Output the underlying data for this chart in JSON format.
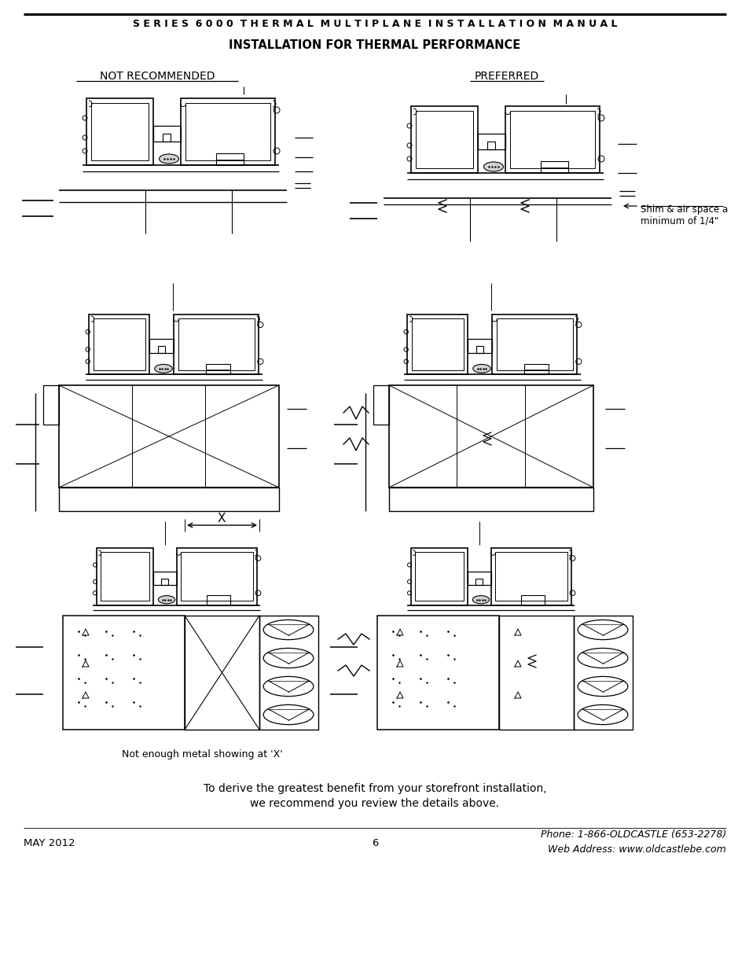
{
  "title_main": "S E R I E S  6 0 0 0  T H E R M A L  M U L T I P L A N E  I N S T A L L A T I O N  M A N U A L",
  "title_sub": "INSTALLATION FOR THERMAL PERFORMANCE",
  "label_left": "NOT RECOMMENDED",
  "label_right": "PREFERRED",
  "shim_label": "Shim & air space a\nminimum of 1/4\"",
  "note_bottom": "Not enough metal showing at 'X'",
  "footer_left": "MAY 2012",
  "footer_center": "6",
  "footer_right_line1": "Phone: 1-866-OLDCASTLE (653-2278)",
  "footer_right_line2": "Web Address: www.oldcastlebe.com",
  "derive_text_line1": "To derive the greatest benefit from your storefront installation,",
  "derive_text_line2": "we recommend you review the details above.",
  "bg_color": "#ffffff",
  "text_color": "#000000",
  "fig_width": 9.54,
  "fig_height": 12.35
}
